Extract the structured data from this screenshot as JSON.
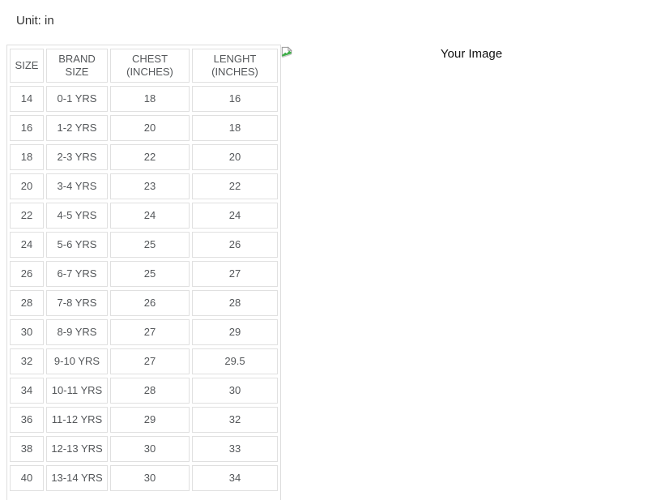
{
  "page": {
    "unit_label": "Unit: in"
  },
  "size_chart": {
    "columns": [
      "SIZE",
      "BRAND SIZE",
      "CHEST (INCHES)",
      "LENGHT (INCHES)"
    ],
    "row_keys": [
      "size",
      "brand_size",
      "chest",
      "length"
    ],
    "rows": [
      {
        "size": "14",
        "brand_size": "0-1 YRS",
        "chest": "18",
        "length": "16"
      },
      {
        "size": "16",
        "brand_size": "1-2 YRS",
        "chest": "20",
        "length": "18"
      },
      {
        "size": "18",
        "brand_size": "2-3 YRS",
        "chest": "22",
        "length": "20"
      },
      {
        "size": "20",
        "brand_size": "3-4 YRS",
        "chest": "23",
        "length": "22"
      },
      {
        "size": "22",
        "brand_size": "4-5 YRS",
        "chest": "24",
        "length": "24"
      },
      {
        "size": "24",
        "brand_size": "5-6 YRS",
        "chest": "25",
        "length": "26"
      },
      {
        "size": "26",
        "brand_size": "6-7 YRS",
        "chest": "25",
        "length": "27"
      },
      {
        "size": "28",
        "brand_size": "7-8 YRS",
        "chest": "26",
        "length": "28"
      },
      {
        "size": "30",
        "brand_size": "8-9 YRS",
        "chest": "27",
        "length": "29"
      },
      {
        "size": "32",
        "brand_size": "9-10 YRS",
        "chest": "27",
        "length": "29.5"
      },
      {
        "size": "34",
        "brand_size": "10-11 YRS",
        "chest": "28",
        "length": "30"
      },
      {
        "size": "36",
        "brand_size": "11-12 YRS",
        "chest": "29",
        "length": "32"
      },
      {
        "size": "38",
        "brand_size": "12-13 YRS",
        "chest": "30",
        "length": "33"
      },
      {
        "size": "40",
        "brand_size": "13-14 YRS",
        "chest": "30",
        "length": "34"
      }
    ]
  },
  "image_placeholder": {
    "alt_text": "Your Image",
    "icon": "broken-image-icon"
  },
  "colors": {
    "table_border": "#dddddd",
    "cell_border": "#e0e0e0",
    "cell_text": "#54575a",
    "label_text": "#333333",
    "broken_icon_green": "#3fae49",
    "broken_icon_gray": "#999999"
  }
}
